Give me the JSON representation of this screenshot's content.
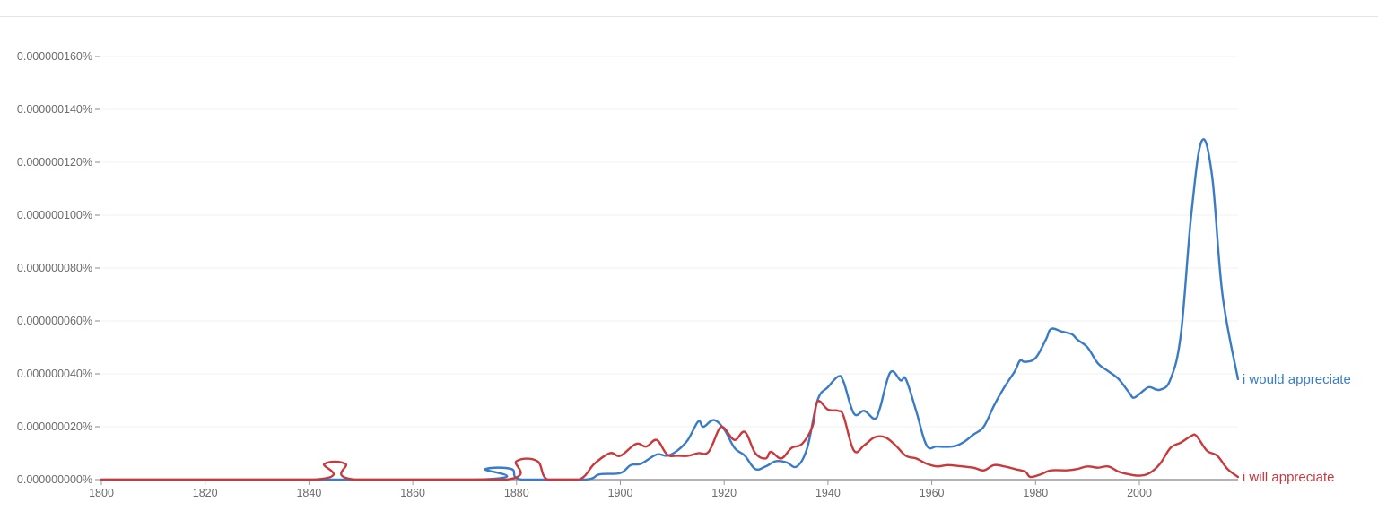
{
  "chart_data": {
    "type": "line",
    "title": "",
    "xlabel": "",
    "ylabel": "",
    "xlim": [
      1800,
      2019
    ],
    "ylim": [
      0,
      1.6e-07
    ],
    "grid": true,
    "legend_position": "inline-right",
    "x_ticks": [
      "1800",
      "1820",
      "1840",
      "1860",
      "1880",
      "1900",
      "1920",
      "1940",
      "1960",
      "1980",
      "2000"
    ],
    "y_ticks": [
      "0.000000000%",
      "0.000000020%",
      "0.000000040%",
      "0.000000060%",
      "0.000000080%",
      "0.000000100%",
      "0.000000120%",
      "0.000000140%",
      "0.000000160%"
    ],
    "y_unit_note": "series values below are in units of 1e-9 percent",
    "series": [
      {
        "name": "i would appreciate",
        "color": "#3a7bc8",
        "points": [
          [
            1800,
            0
          ],
          [
            1872,
            0
          ],
          [
            1874,
            4
          ],
          [
            1879,
            4
          ],
          [
            1881,
            0
          ],
          [
            1893,
            0
          ],
          [
            1896,
            2
          ],
          [
            1900,
            2.5
          ],
          [
            1902,
            5.5
          ],
          [
            1904,
            6
          ],
          [
            1907,
            9.5
          ],
          [
            1909,
            9
          ],
          [
            1911,
            11
          ],
          [
            1913,
            15
          ],
          [
            1915,
            22
          ],
          [
            1916,
            20
          ],
          [
            1918,
            22.5
          ],
          [
            1920,
            19
          ],
          [
            1922,
            12
          ],
          [
            1924,
            9
          ],
          [
            1926,
            4
          ],
          [
            1928,
            5
          ],
          [
            1930,
            7
          ],
          [
            1932,
            6.5
          ],
          [
            1934,
            5
          ],
          [
            1936,
            12
          ],
          [
            1938,
            30
          ],
          [
            1940,
            35
          ],
          [
            1942,
            39
          ],
          [
            1943,
            37
          ],
          [
            1945,
            25
          ],
          [
            1947,
            26
          ],
          [
            1949,
            23
          ],
          [
            1950,
            27
          ],
          [
            1952,
            40.5
          ],
          [
            1954,
            37.5
          ],
          [
            1955,
            38
          ],
          [
            1957,
            26
          ],
          [
            1959,
            13
          ],
          [
            1961,
            12.5
          ],
          [
            1964,
            12.5
          ],
          [
            1966,
            14
          ],
          [
            1968,
            17
          ],
          [
            1970,
            20
          ],
          [
            1972,
            28
          ],
          [
            1974,
            35
          ],
          [
            1976,
            41
          ],
          [
            1977,
            45
          ],
          [
            1978,
            44.5
          ],
          [
            1980,
            46
          ],
          [
            1982,
            53
          ],
          [
            1983,
            57
          ],
          [
            1985,
            56
          ],
          [
            1987,
            55
          ],
          [
            1988,
            53
          ],
          [
            1990,
            50
          ],
          [
            1992,
            44
          ],
          [
            1994,
            41
          ],
          [
            1996,
            38
          ],
          [
            1998,
            33
          ],
          [
            1999,
            31
          ],
          [
            2001,
            34
          ],
          [
            2002,
            35
          ],
          [
            2004,
            34
          ],
          [
            2006,
            38
          ],
          [
            2008,
            55
          ],
          [
            2010,
            100
          ],
          [
            2012,
            128
          ],
          [
            2014,
            115
          ],
          [
            2016,
            70
          ],
          [
            2019,
            38
          ]
        ]
      },
      {
        "name": "i will appreciate",
        "color": "#c9393c",
        "points": [
          [
            1800,
            0
          ],
          [
            1841,
            0
          ],
          [
            1843,
            6
          ],
          [
            1847,
            6
          ],
          [
            1849,
            0
          ],
          [
            1878,
            0
          ],
          [
            1880,
            7
          ],
          [
            1884,
            7
          ],
          [
            1886,
            0
          ],
          [
            1892,
            0
          ],
          [
            1895,
            6
          ],
          [
            1898,
            10
          ],
          [
            1900,
            9
          ],
          [
            1903,
            13.5
          ],
          [
            1905,
            12.5
          ],
          [
            1907,
            15
          ],
          [
            1909,
            9.5
          ],
          [
            1911,
            9
          ],
          [
            1913,
            9
          ],
          [
            1915,
            10
          ],
          [
            1917,
            10.5
          ],
          [
            1919,
            19
          ],
          [
            1920,
            19.5
          ],
          [
            1922,
            15
          ],
          [
            1924,
            18
          ],
          [
            1926,
            10
          ],
          [
            1928,
            8
          ],
          [
            1929,
            10.5
          ],
          [
            1931,
            8
          ],
          [
            1933,
            12
          ],
          [
            1935,
            13.5
          ],
          [
            1937,
            20
          ],
          [
            1938,
            29.5
          ],
          [
            1940,
            26.5
          ],
          [
            1942,
            26
          ],
          [
            1943,
            24
          ],
          [
            1945,
            11
          ],
          [
            1947,
            13
          ],
          [
            1949,
            16
          ],
          [
            1951,
            16
          ],
          [
            1953,
            13
          ],
          [
            1955,
            9
          ],
          [
            1957,
            8
          ],
          [
            1959,
            6
          ],
          [
            1961,
            5
          ],
          [
            1963,
            5.5
          ],
          [
            1965,
            5.2
          ],
          [
            1968,
            4.5
          ],
          [
            1970,
            3.5
          ],
          [
            1972,
            5.5
          ],
          [
            1974,
            5
          ],
          [
            1976,
            4
          ],
          [
            1978,
            3
          ],
          [
            1979,
            1
          ],
          [
            1981,
            2
          ],
          [
            1983,
            3.5
          ],
          [
            1986,
            3.5
          ],
          [
            1988,
            4
          ],
          [
            1990,
            5
          ],
          [
            1992,
            4.5
          ],
          [
            1994,
            5
          ],
          [
            1996,
            3
          ],
          [
            1998,
            2
          ],
          [
            2000,
            1.5
          ],
          [
            2002,
            2.5
          ],
          [
            2004,
            6
          ],
          [
            2006,
            12
          ],
          [
            2008,
            14
          ],
          [
            2010,
            16.5
          ],
          [
            2011,
            16.5
          ],
          [
            2013,
            11
          ],
          [
            2015,
            9
          ],
          [
            2017,
            4
          ],
          [
            2019,
            1
          ]
        ]
      }
    ]
  }
}
